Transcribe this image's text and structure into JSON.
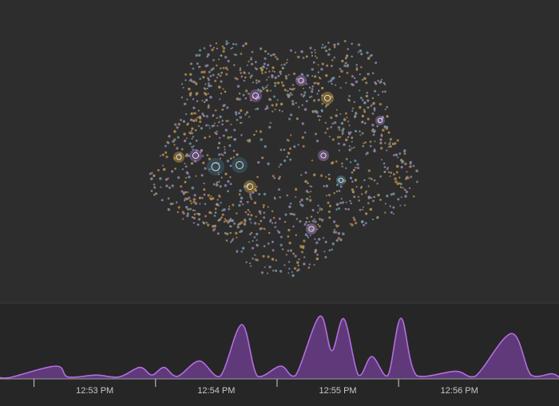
{
  "chart_data": {
    "type": "area",
    "color": "#b36ee0",
    "x": [
      52.72,
      52.8,
      53.18,
      53.28,
      53.51,
      53.7,
      53.87,
      53.97,
      54.07,
      54.18,
      54.36,
      54.53,
      54.71,
      54.84,
      55.03,
      55.15,
      55.35,
      55.45,
      55.55,
      55.67,
      55.78,
      55.91,
      56.02,
      56.15,
      56.47,
      56.63,
      56.93,
      57.09,
      57.26,
      57.32
    ],
    "values": [
      2,
      2,
      20,
      3,
      6,
      3,
      18,
      6,
      18,
      4,
      28,
      4,
      85,
      4,
      20,
      5,
      98,
      44,
      94,
      6,
      35,
      5,
      95,
      5,
      12,
      4,
      71,
      6,
      8,
      3
    ],
    "xlim": [
      52.72,
      57.32
    ],
    "ylim": [
      0,
      100
    ],
    "xticks": [
      {
        "value": 53.5,
        "label": "12:53 PM"
      },
      {
        "value": 54.5,
        "label": "12:54 PM"
      },
      {
        "value": 55.5,
        "label": "12:55 PM"
      },
      {
        "value": 56.5,
        "label": "12:56 PM"
      }
    ]
  }
}
